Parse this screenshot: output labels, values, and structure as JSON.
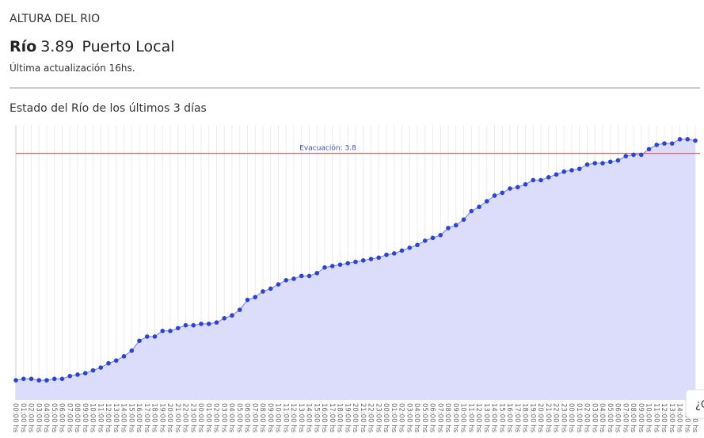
{
  "header": {
    "section": "ALTURA DEL RIO",
    "river": "Río",
    "level": "3.89",
    "place": "Puerto Local",
    "updated": "Última actualización 16hs."
  },
  "help_button": "¿C",
  "chart_data": {
    "type": "line",
    "title": "Estado del Río de los últimos 3 días",
    "categories": [
      "00:00 hs",
      "01:00 hs",
      "02:00 hs",
      "03:00 hs",
      "04:00 hs",
      "05:00 hs",
      "06:00 hs",
      "07:00 hs",
      "08:00 hs",
      "09:00 hs",
      "10:00 hs",
      "11:00 hs",
      "12:00 hs",
      "13:00 hs",
      "14:00 hs",
      "15:00 hs",
      "16:00 hs",
      "17:00 hs",
      "18:00 hs",
      "19:00 hs",
      "20:00 hs",
      "21:00 hs",
      "22:00 hs",
      "23:00 hs",
      "00:00 hs",
      "01:00 hs",
      "02:00 hs",
      "03:00 hs",
      "04:00 hs",
      "05:00 hs",
      "06:00 hs",
      "07:00 hs",
      "08:00 hs",
      "09:00 hs",
      "10:00 hs",
      "11:00 hs",
      "12:00 hs",
      "13:00 hs",
      "14:00 hs",
      "15:00 hs",
      "16:00 hs",
      "17:00 hs",
      "18:00 hs",
      "19:00 hs",
      "20:00 hs",
      "21:00 hs",
      "22:00 hs",
      "23:00 hs",
      "00:00 hs",
      "01:00 hs",
      "02:00 hs",
      "03:00 hs",
      "04:00 hs",
      "05:00 hs",
      "06:00 hs",
      "07:00 hs",
      "08:00 hs",
      "09:00 hs",
      "10:00 hs",
      "11:00 hs",
      "12:00 hs",
      "13:00 hs",
      "14:00 hs",
      "15:00 hs",
      "16:00 hs",
      "17:00 hs",
      "18:00 hs",
      "19:00 hs",
      "20:00 hs",
      "21:00 hs",
      "22:00 hs",
      "23:00 hs",
      "00:00 hs",
      "01:00 hs",
      "02:00 hs",
      "03:00 hs",
      "04:00 hs",
      "05:00 hs",
      "06:00 hs",
      "07:00 hs",
      "08:00 hs",
      "09:00 hs",
      "10:00 hs",
      "11:00 hs",
      "12:00 hs",
      "13:00 hs",
      "14:00 hs",
      "15:00 hs",
      "16:00 hs"
    ],
    "values": [
      2.19,
      2.2,
      2.2,
      2.19,
      2.19,
      2.2,
      2.2,
      2.22,
      2.23,
      2.24,
      2.26,
      2.28,
      2.31,
      2.33,
      2.36,
      2.4,
      2.47,
      2.5,
      2.5,
      2.54,
      2.54,
      2.56,
      2.58,
      2.58,
      2.59,
      2.59,
      2.6,
      2.63,
      2.65,
      2.69,
      2.76,
      2.78,
      2.82,
      2.84,
      2.87,
      2.9,
      2.91,
      2.93,
      2.93,
      2.95,
      2.99,
      3.0,
      3.01,
      3.02,
      3.03,
      3.04,
      3.05,
      3.06,
      3.08,
      3.09,
      3.11,
      3.13,
      3.15,
      3.18,
      3.2,
      3.22,
      3.27,
      3.29,
      3.33,
      3.39,
      3.42,
      3.46,
      3.5,
      3.52,
      3.55,
      3.56,
      3.58,
      3.61,
      3.61,
      3.63,
      3.65,
      3.67,
      3.68,
      3.69,
      3.72,
      3.73,
      3.73,
      3.74,
      3.75,
      3.78,
      3.79,
      3.79,
      3.83,
      3.86,
      3.87,
      3.87,
      3.9,
      3.9,
      3.89
    ],
    "color": "#2b44d6",
    "fill": "#dcdcfb",
    "ylim": [
      2.05,
      4.0
    ],
    "grid": true,
    "threshold": {
      "value": 3.8,
      "label": "Evacuación: 3.8",
      "color": "#e06060"
    }
  }
}
